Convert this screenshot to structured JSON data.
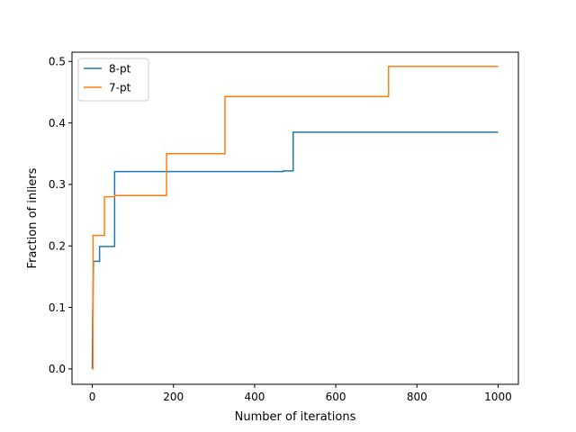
{
  "chart_data": {
    "type": "line",
    "xlabel": "Number of iterations",
    "ylabel": "Fraction of inliers",
    "xlim": [
      -50,
      1050
    ],
    "ylim": [
      -0.025,
      0.515
    ],
    "xticks": [
      0,
      200,
      400,
      600,
      800,
      1000
    ],
    "xtick_labels": [
      "0",
      "200",
      "400",
      "600",
      "800",
      "1000"
    ],
    "yticks": [
      0.0,
      0.1,
      0.2,
      0.3,
      0.4,
      0.5
    ],
    "ytick_labels": [
      "0.0",
      "0.1",
      "0.2",
      "0.3",
      "0.4",
      "0.5"
    ],
    "grid": false,
    "legend_position": "top-left",
    "series": [
      {
        "name": "8-pt",
        "color": "#1f77b4",
        "step": true,
        "points": [
          [
            0,
            0.0
          ],
          [
            1,
            0.083
          ],
          [
            3,
            0.175
          ],
          [
            18,
            0.175
          ],
          [
            18,
            0.199
          ],
          [
            55,
            0.199
          ],
          [
            55,
            0.321
          ],
          [
            470,
            0.321
          ],
          [
            470,
            0.322
          ],
          [
            495,
            0.322
          ],
          [
            495,
            0.385
          ],
          [
            1000,
            0.385
          ]
        ]
      },
      {
        "name": "7-pt",
        "color": "#ff7f0e",
        "step": true,
        "points": [
          [
            0,
            0.0
          ],
          [
            2,
            0.0
          ],
          [
            2,
            0.217
          ],
          [
            30,
            0.217
          ],
          [
            30,
            0.28
          ],
          [
            55,
            0.28
          ],
          [
            55,
            0.282
          ],
          [
            183,
            0.282
          ],
          [
            183,
            0.35
          ],
          [
            327,
            0.35
          ],
          [
            327,
            0.443
          ],
          [
            730,
            0.443
          ],
          [
            730,
            0.492
          ],
          [
            1000,
            0.492
          ]
        ]
      }
    ]
  }
}
